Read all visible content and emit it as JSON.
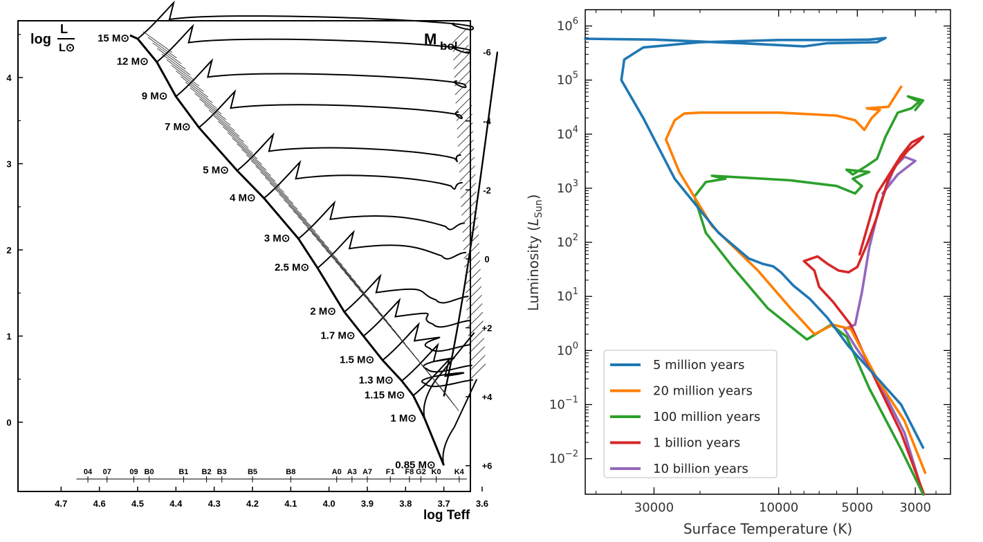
{
  "chart_data": [
    {
      "type": "line",
      "title": "",
      "xlabel": "log Teff",
      "ylabel_left": "log L/L☉",
      "ylabel_right": "M_bol",
      "ylabel_left_main": "log",
      "ylabel_left_num": "L",
      "ylabel_left_den": "L⊙",
      "ylabel_right_main": "M",
      "ylabel_right_sub": "bol",
      "xlim": [
        3.45,
        4.8
      ],
      "ylim": [
        -0.6,
        4.6
      ],
      "x_ticks": [
        "4.7",
        "4.6",
        "4.5",
        "4.4",
        "4.3",
        "4.2",
        "4.1",
        "4.0",
        "3.9",
        "3.8",
        "3.7",
        "3.6"
      ],
      "y_ticks": [
        "0",
        "1",
        "2",
        "3",
        "4"
      ],
      "y_right_ticks": [
        "-6",
        "-4",
        "-2",
        "0",
        "+2",
        "+4",
        "+6"
      ],
      "spectral_types": [
        "04",
        "07",
        "09",
        "B0",
        "B1",
        "B2",
        "B3",
        "B5",
        "B8",
        "A0",
        "A3",
        "A7",
        "F1",
        "F8",
        "G2",
        "K0",
        "K4"
      ],
      "spectral_logT": [
        4.63,
        4.58,
        4.51,
        4.47,
        4.38,
        4.32,
        4.28,
        4.2,
        4.1,
        3.98,
        3.94,
        3.9,
        3.84,
        3.79,
        3.76,
        3.72,
        3.66
      ],
      "masses": [
        {
          "label": "15 M⊙",
          "main_sequence": [
            4.5,
            4.45
          ]
        },
        {
          "label": "12 M⊙",
          "main_sequence": [
            4.45,
            4.18
          ]
        },
        {
          "label": "9 M⊙",
          "main_sequence": [
            4.4,
            3.78
          ]
        },
        {
          "label": "7 M⊙",
          "main_sequence": [
            4.34,
            3.42
          ]
        },
        {
          "label": "5 M⊙",
          "main_sequence": [
            4.24,
            2.92
          ]
        },
        {
          "label": "4 M⊙",
          "main_sequence": [
            4.17,
            2.6
          ]
        },
        {
          "label": "3 M⊙",
          "main_sequence": [
            4.08,
            2.13
          ]
        },
        {
          "label": "2.5 M⊙",
          "main_sequence": [
            4.03,
            1.79
          ]
        },
        {
          "label": "2 M⊙",
          "main_sequence": [
            3.96,
            1.28
          ]
        },
        {
          "label": "1.7 M⊙",
          "main_sequence": [
            3.91,
            1.0
          ]
        },
        {
          "label": "1.5 M⊙",
          "main_sequence": [
            3.86,
            0.72
          ]
        },
        {
          "label": "1.3 M⊙",
          "main_sequence": [
            3.81,
            0.48
          ]
        },
        {
          "label": "1.15 M⊙",
          "main_sequence": [
            3.78,
            0.31
          ]
        },
        {
          "label": "1 M⊙",
          "main_sequence": [
            3.75,
            0.04
          ]
        },
        {
          "label": "0.85 M⊙",
          "main_sequence": [
            3.7,
            -0.5
          ]
        }
      ]
    },
    {
      "type": "line",
      "title": "",
      "xlabel": "Surface Temperature (K)",
      "ylabel": "Luminosity (L_Sun)",
      "ylabel_main": "Luminosity (",
      "ylabel_var": "L",
      "ylabel_sub": "Sun",
      "ylabel_end": ")",
      "x_scale": "log",
      "x_reversed": true,
      "y_scale": "log",
      "xlim": [
        55000,
        2200
      ],
      "ylim": [
        0.0022,
        2000000
      ],
      "x_ticks": [
        "30000",
        "10000",
        "5000",
        "3000"
      ],
      "x_tick_values": [
        30000,
        10000,
        5000,
        3000
      ],
      "y_ticks": [
        "10",
        "10",
        "10",
        "10",
        "10",
        "10",
        "10",
        "10",
        "10"
      ],
      "y_tick_exponents": [
        "−2",
        "−1",
        "0",
        "1",
        "2",
        "3",
        "4",
        "5",
        "6"
      ],
      "legend": "bottom-left",
      "series": [
        {
          "name": "5 million years",
          "color": "#1f77b4",
          "points": [
            [
              2800,
              0.016
            ],
            [
              3400,
              0.1
            ],
            [
              4400,
              0.4
            ],
            [
              5400,
              1.2
            ],
            [
              6500,
              4
            ],
            [
              7600,
              9
            ],
            [
              8800,
              16
            ],
            [
              9800,
              28
            ],
            [
              10500,
              36
            ],
            [
              11500,
              40
            ],
            [
              13000,
              50
            ],
            [
              17000,
              150
            ],
            [
              25000,
              1500
            ],
            [
              33000,
              20000
            ],
            [
              40000,
              100000
            ],
            [
              39000,
              240000
            ],
            [
              33000,
              400000
            ],
            [
              20000,
              500000
            ],
            [
              10000,
              550000
            ],
            [
              6000,
              550000
            ],
            [
              4500,
              560000
            ],
            [
              3900,
              600000
            ],
            [
              4200,
              500000
            ],
            [
              6500,
              480000
            ],
            [
              8000,
              420000
            ],
            [
              14000,
              480000
            ],
            [
              30000,
              560000
            ],
            [
              55000,
              580000
            ]
          ]
        },
        {
          "name": "20 million years",
          "color": "#ff7f00",
          "points": [
            [
              2750,
              0.0055
            ],
            [
              3300,
              0.05
            ],
            [
              4200,
              0.3
            ],
            [
              5300,
              2.5
            ],
            [
              6200,
              3
            ],
            [
              7300,
              2
            ],
            [
              9000,
              6
            ],
            [
              12000,
              30
            ],
            [
              18000,
              200
            ],
            [
              24000,
              2000
            ],
            [
              27000,
              8000
            ],
            [
              25000,
              18000
            ],
            [
              23000,
              24000
            ],
            [
              20000,
              25000
            ],
            [
              10000,
              25000
            ],
            [
              6000,
              22000
            ],
            [
              5100,
              18000
            ],
            [
              4700,
              12000
            ],
            [
              4400,
              20000
            ],
            [
              4100,
              28000
            ],
            [
              4600,
              30000
            ],
            [
              3800,
              32000
            ],
            [
              3400,
              75000
            ]
          ]
        },
        {
          "name": "100 million years",
          "color": "#2ca02c",
          "points": [
            [
              2800,
              0.0022
            ],
            [
              3400,
              0.015
            ],
            [
              4500,
              0.2
            ],
            [
              5500,
              1.8
            ],
            [
              6300,
              3
            ],
            [
              7800,
              1.6
            ],
            [
              11000,
              6
            ],
            [
              15000,
              35
            ],
            [
              19000,
              150
            ],
            [
              21000,
              700
            ],
            [
              19000,
              1300
            ],
            [
              16000,
              1500
            ],
            [
              18000,
              1700
            ],
            [
              9000,
              1400
            ],
            [
              6000,
              1100
            ],
            [
              5100,
              800
            ],
            [
              4800,
              1100
            ],
            [
              5200,
              1500
            ],
            [
              4500,
              2000
            ],
            [
              5500,
              2200
            ],
            [
              5200,
              1800
            ],
            [
              4600,
              2600
            ],
            [
              4200,
              3500
            ],
            [
              3900,
              9000
            ],
            [
              3500,
              25000
            ],
            [
              3100,
              30000
            ],
            [
              2900,
              40000
            ],
            [
              3200,
              50000
            ],
            [
              2800,
              42000
            ],
            [
              3000,
              28000
            ]
          ]
        },
        {
          "name": "1 billion years",
          "color": "#d62728",
          "points": [
            [
              2780,
              0.0022
            ],
            [
              3400,
              0.03
            ],
            [
              4400,
              0.4
            ],
            [
              5300,
              3
            ],
            [
              6200,
              8
            ],
            [
              7000,
              15
            ],
            [
              7300,
              30
            ],
            [
              8000,
              45
            ],
            [
              7100,
              55
            ],
            [
              6500,
              40
            ],
            [
              5900,
              30
            ],
            [
              5400,
              28
            ],
            [
              5000,
              35
            ],
            [
              4600,
              90
            ],
            [
              4200,
              300
            ],
            [
              3800,
              1500
            ],
            [
              3500,
              3000
            ],
            [
              3200,
              5000
            ],
            [
              2900,
              7500
            ],
            [
              2800,
              9000
            ],
            [
              3100,
              7000
            ],
            [
              3400,
              4000
            ],
            [
              4200,
              800
            ],
            [
              4900,
              60
            ]
          ]
        },
        {
          "name": "10 billion years",
          "color": "#9467bd",
          "points": [
            [
              2800,
              0.0022
            ],
            [
              3300,
              0.03
            ],
            [
              4200,
              0.3
            ],
            [
              5100,
              1.2
            ],
            [
              5600,
              2.5
            ],
            [
              5100,
              3.0
            ],
            [
              4800,
              12
            ],
            [
              4500,
              80
            ],
            [
              4100,
              500
            ],
            [
              3600,
              2500
            ],
            [
              3300,
              3800
            ],
            [
              3000,
              3200
            ],
            [
              3500,
              1800
            ],
            [
              4000,
              800
            ]
          ]
        }
      ]
    }
  ]
}
